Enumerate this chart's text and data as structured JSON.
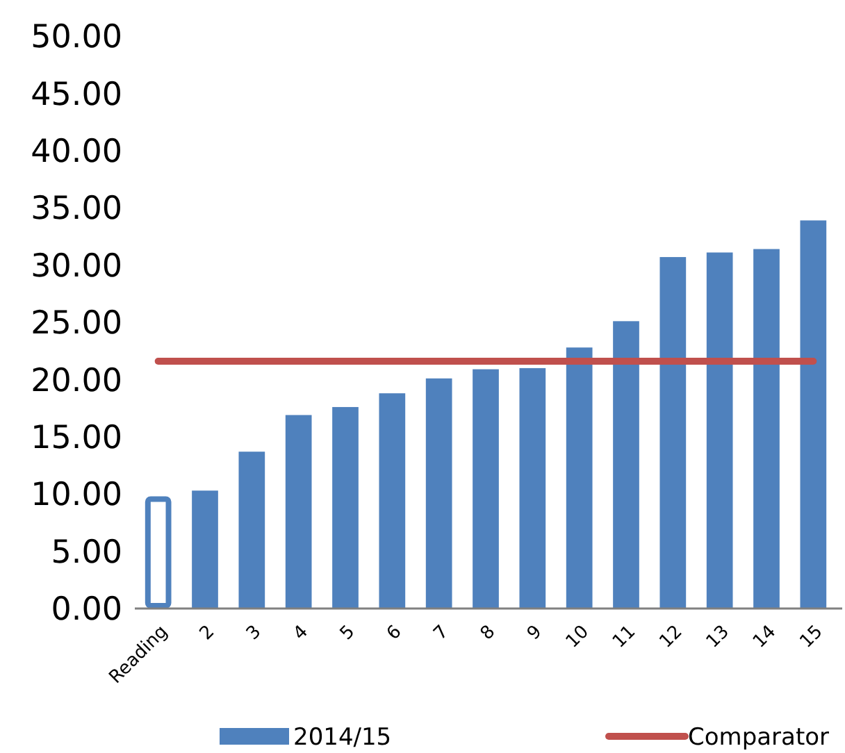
{
  "chart_data": {
    "type": "bar",
    "categories": [
      "Reading",
      "2",
      "3",
      "4",
      "5",
      "6",
      "7",
      "8",
      "9",
      "10",
      "11",
      "12",
      "13",
      "14",
      "15"
    ],
    "series": [
      {
        "name": "2014/15",
        "color": "#4f81bd",
        "colors": [
          "#ffffff",
          "#4f81bd",
          "#4f81bd",
          "#4f81bd",
          "#4f81bd",
          "#4f81bd",
          "#4f81bd",
          "#4f81bd",
          "#4f81bd",
          "#4f81bd",
          "#4f81bd",
          "#4f81bd",
          "#4f81bd",
          "#4f81bd",
          "#4f81bd"
        ],
        "values": [
          9.8,
          10.3,
          13.7,
          16.9,
          17.6,
          18.8,
          20.1,
          20.9,
          21.0,
          22.8,
          25.1,
          30.7,
          31.1,
          31.4,
          33.9
        ]
      },
      {
        "name": "Comparator",
        "type": "line",
        "color": "#c0504d",
        "values": [
          21.6,
          21.6,
          21.6,
          21.6,
          21.6,
          21.6,
          21.6,
          21.6,
          21.6,
          21.6,
          21.6,
          21.6,
          21.6,
          21.6,
          21.6
        ]
      }
    ],
    "ylim": [
      0,
      50
    ],
    "yticks": [
      {
        "value": 0,
        "label": "0.00"
      },
      {
        "value": 5,
        "label": "5.00"
      },
      {
        "value": 10,
        "label": "10.00"
      },
      {
        "value": 15,
        "label": "15.00"
      },
      {
        "value": 20,
        "label": "20.00"
      },
      {
        "value": 25,
        "label": "25.00"
      },
      {
        "value": 30,
        "label": "30.00"
      },
      {
        "value": 35,
        "label": "35.00"
      },
      {
        "value": 40,
        "label": "40.00"
      },
      {
        "value": 45,
        "label": "45.00"
      },
      {
        "value": 50,
        "label": "50.00"
      }
    ],
    "grid": false,
    "legend": "bottom"
  }
}
